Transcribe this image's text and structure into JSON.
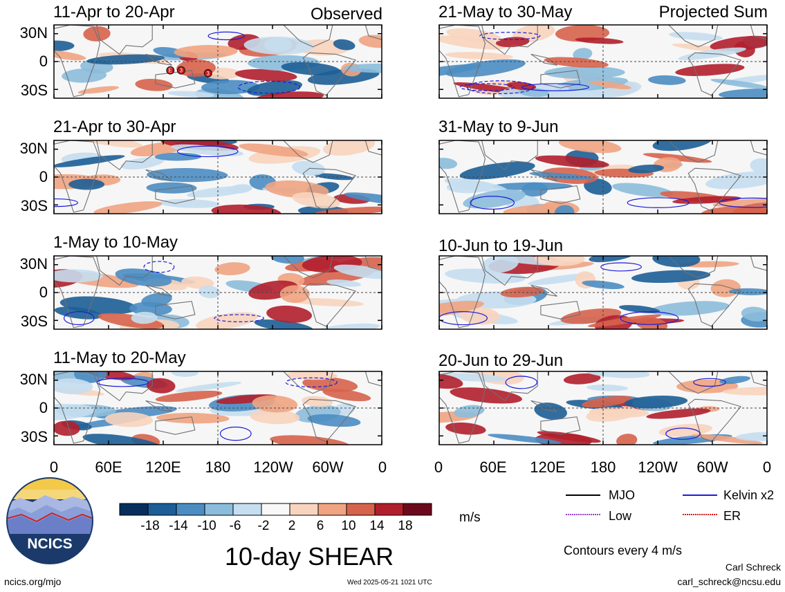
{
  "colors": {
    "scale": [
      "#082e5c",
      "#1d5e96",
      "#4b8dc2",
      "#8cbcdc",
      "#c5def0",
      "#f8f8f8",
      "#f8d4be",
      "#f0a482",
      "#d7634d",
      "#b11f2c",
      "#6b0a1c"
    ],
    "mjo": "#000000",
    "kelvin": "#1a1adb",
    "low": "#9440d0",
    "er": "#d02020",
    "land": "#707070",
    "logo_navy": "#1b3a6b",
    "logo_sun": "#f3c94a"
  },
  "panels": [
    {
      "title": "11-Apr to 20-Apr",
      "corner": "Observed"
    },
    {
      "title": "21-Apr to 30-Apr",
      "corner": ""
    },
    {
      "title": "1-May to 10-May",
      "corner": ""
    },
    {
      "title": "11-May to 20-May",
      "corner": ""
    },
    {
      "title": "21-May to 30-May",
      "corner": "Projected Sum"
    },
    {
      "title": "31-May to 9-Jun",
      "corner": ""
    },
    {
      "title": "10-Jun to 19-Jun",
      "corner": ""
    },
    {
      "title": "20-Jun to 29-Jun",
      "corner": ""
    }
  ],
  "axes": {
    "lat_ticks": [
      "30N",
      "0",
      "30S"
    ],
    "lon_ticks": [
      "0",
      "60E",
      "120E",
      "180",
      "120W",
      "60W",
      "0"
    ]
  },
  "colorbar": {
    "labels": [
      "-18",
      "-14",
      "-10",
      "-6",
      "-2",
      "2",
      "6",
      "10",
      "14",
      "18"
    ],
    "unit": "m/s"
  },
  "legend": {
    "mjo": "MJO",
    "kelvin": "Kelvin x2",
    "low": "Low",
    "er": "ER",
    "note": "Contours every 4 m/s"
  },
  "markers": [
    "E",
    "3",
    "3"
  ],
  "main_title": "10-day SHEAR",
  "logo_text": "NCICS",
  "footer": {
    "website": "ncics.org/mjo",
    "timestamp": "Wed 2025-05-21 1021 UTC",
    "author": "Carl Schreck",
    "email": "carl_schreck@ncsu.edu"
  }
}
